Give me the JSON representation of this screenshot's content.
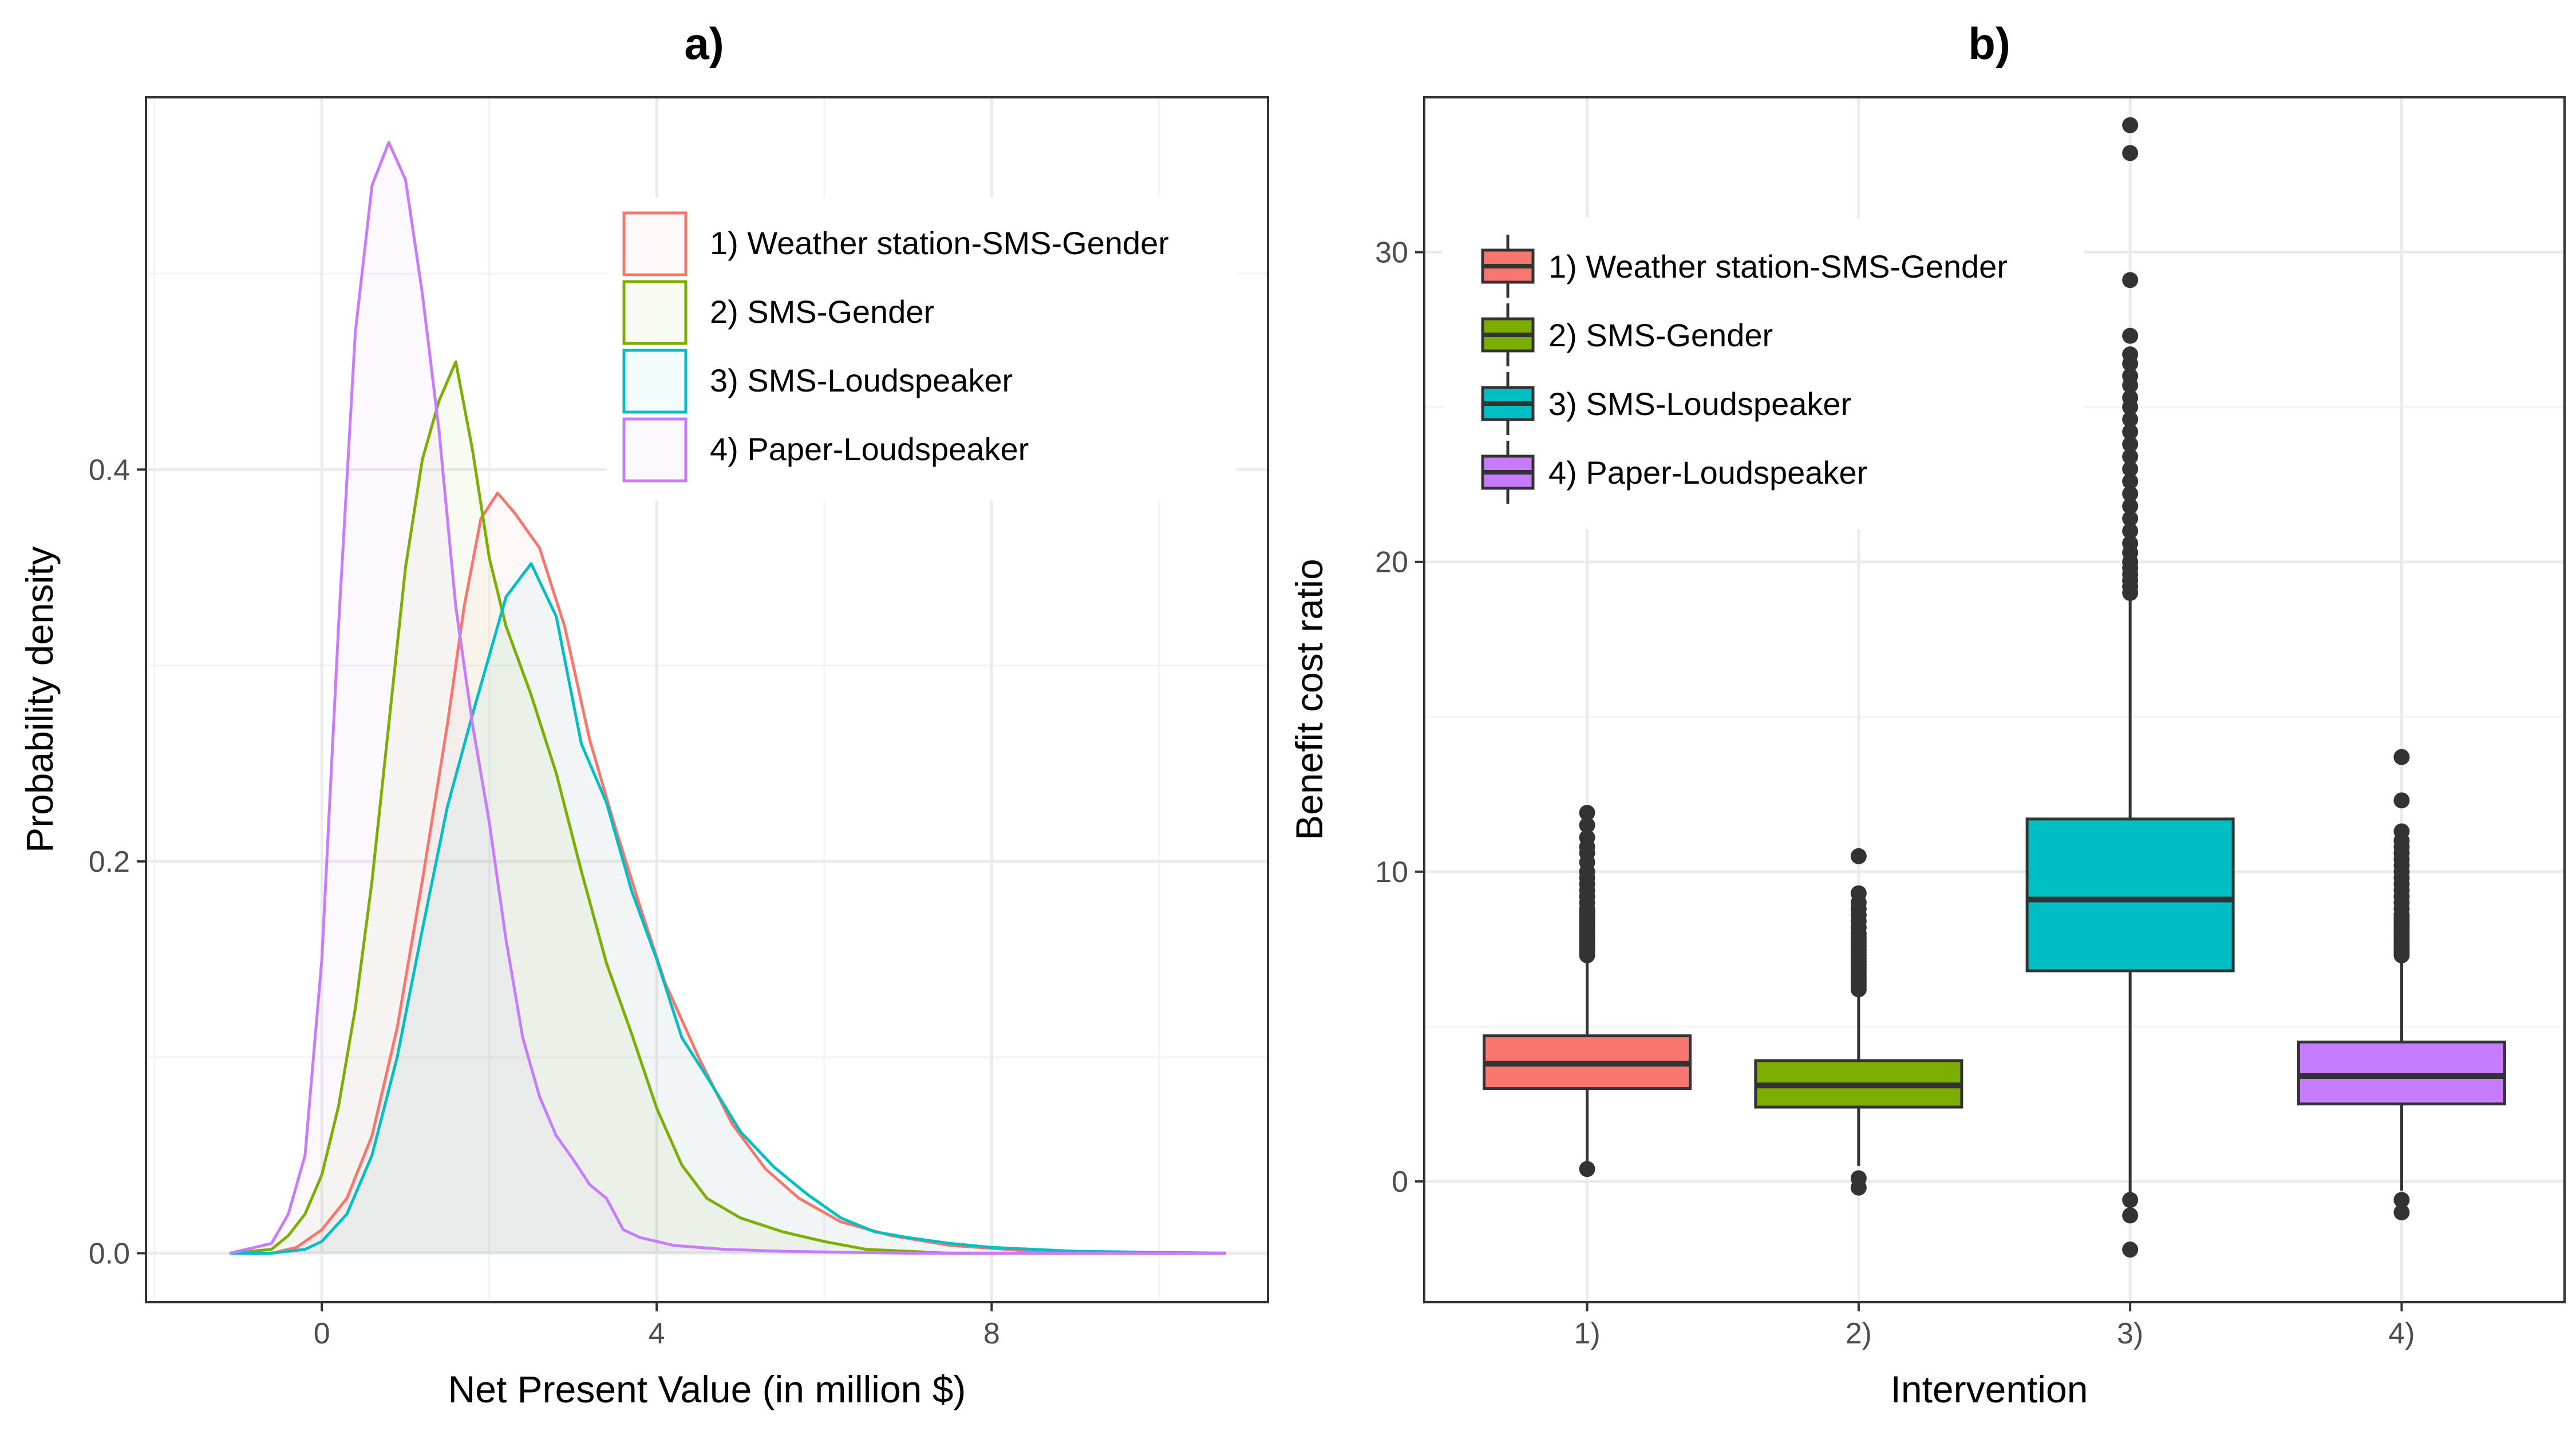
{
  "chart_data": [
    {
      "panel_label": "a)",
      "type": "area",
      "title": "a)",
      "xlabel": "Net Present Value (in million $)",
      "ylabel": "Probability density",
      "xlim": [
        -2.1,
        11.3
      ],
      "ylim": [
        -0.025,
        0.59
      ],
      "xticks": [
        0,
        4,
        8
      ],
      "xtick_labels": [
        "0",
        "4",
        "8"
      ],
      "yticks": [
        0.0,
        0.2,
        0.4
      ],
      "ytick_labels": [
        "0.0",
        "0.2",
        "0.4"
      ],
      "grid": true,
      "legend_position": "top-right",
      "series": [
        {
          "name": "1) Weather station-SMS-Gender",
          "color": "#F8766D",
          "x": [
            -1.1,
            -0.6,
            -0.3,
            0.0,
            0.3,
            0.6,
            0.9,
            1.2,
            1.5,
            1.7,
            1.9,
            2.1,
            2.3,
            2.6,
            2.9,
            3.2,
            3.5,
            3.8,
            4.1,
            4.5,
            4.9,
            5.3,
            5.7,
            6.2,
            6.8,
            7.5,
            8.5,
            9.5,
            10.8
          ],
          "y": [
            0.0,
            0.0,
            0.003,
            0.012,
            0.028,
            0.06,
            0.115,
            0.19,
            0.27,
            0.33,
            0.375,
            0.388,
            0.378,
            0.36,
            0.32,
            0.262,
            0.218,
            0.177,
            0.138,
            0.1,
            0.066,
            0.043,
            0.028,
            0.016,
            0.009,
            0.004,
            0.001,
            0.0,
            0.0
          ]
        },
        {
          "name": "2) SMS-Gender",
          "color": "#7CAE00",
          "x": [
            -1.1,
            -0.6,
            -0.4,
            -0.2,
            0.0,
            0.2,
            0.4,
            0.6,
            0.8,
            1.0,
            1.2,
            1.4,
            1.6,
            1.8,
            2.0,
            2.2,
            2.5,
            2.8,
            3.1,
            3.4,
            3.7,
            4.0,
            4.3,
            4.6,
            5.0,
            5.5,
            6.0,
            6.5,
            7.5,
            10.8
          ],
          "y": [
            0.0,
            0.002,
            0.009,
            0.02,
            0.04,
            0.075,
            0.125,
            0.19,
            0.27,
            0.35,
            0.405,
            0.435,
            0.455,
            0.41,
            0.355,
            0.32,
            0.285,
            0.245,
            0.195,
            0.148,
            0.112,
            0.074,
            0.045,
            0.028,
            0.018,
            0.011,
            0.006,
            0.002,
            0.0,
            0.0
          ]
        },
        {
          "name": "3) SMS-Loudspeaker",
          "color": "#00BFC4",
          "x": [
            -1.1,
            -0.6,
            -0.2,
            0.0,
            0.3,
            0.6,
            0.9,
            1.2,
            1.5,
            1.8,
            2.0,
            2.2,
            2.5,
            2.8,
            3.1,
            3.4,
            3.7,
            4.0,
            4.3,
            4.6,
            5.0,
            5.4,
            5.8,
            6.2,
            6.6,
            7.0,
            7.5,
            8.0,
            9.0,
            10.8
          ],
          "y": [
            0.0,
            0.0,
            0.002,
            0.006,
            0.02,
            0.05,
            0.1,
            0.165,
            0.228,
            0.275,
            0.305,
            0.335,
            0.352,
            0.325,
            0.26,
            0.23,
            0.185,
            0.15,
            0.11,
            0.09,
            0.062,
            0.044,
            0.03,
            0.018,
            0.011,
            0.008,
            0.005,
            0.003,
            0.001,
            0.0
          ]
        },
        {
          "name": "4) Paper-Loudspeaker",
          "color": "#C77CFF",
          "x": [
            -1.1,
            -0.6,
            -0.4,
            -0.2,
            0.0,
            0.2,
            0.4,
            0.6,
            0.8,
            1.0,
            1.2,
            1.4,
            1.6,
            1.8,
            2.0,
            2.2,
            2.4,
            2.6,
            2.8,
            3.0,
            3.2,
            3.4,
            3.6,
            3.8,
            4.2,
            4.8,
            5.5,
            7.0,
            10.8
          ],
          "y": [
            0.0,
            0.005,
            0.02,
            0.05,
            0.15,
            0.32,
            0.47,
            0.545,
            0.567,
            0.548,
            0.49,
            0.42,
            0.33,
            0.27,
            0.22,
            0.16,
            0.11,
            0.08,
            0.06,
            0.048,
            0.035,
            0.028,
            0.012,
            0.008,
            0.004,
            0.002,
            0.001,
            0.0,
            0.0
          ]
        }
      ]
    },
    {
      "panel_label": "b)",
      "type": "box",
      "title": "b)",
      "xlabel": "Intervention",
      "ylabel": "Benefit cost ratio",
      "categories": [
        "1)",
        "2)",
        "3)",
        "4)"
      ],
      "ylim": [
        -3.9,
        35.0
      ],
      "yticks": [
        0,
        10,
        20,
        30
      ],
      "ytick_labels": [
        "0",
        "10",
        "20",
        "30"
      ],
      "grid": true,
      "legend_position": "top-left",
      "series": [
        {
          "name": "1) Weather station-SMS-Gender",
          "color": "#F8766D",
          "category": "1)",
          "whisker_low": 0.5,
          "q1": 3.0,
          "median": 3.8,
          "q3": 4.7,
          "whisker_high": 7.2,
          "outliers": [
            7.3,
            7.4,
            7.5,
            7.6,
            7.7,
            7.8,
            7.9,
            8.0,
            8.1,
            8.2,
            8.3,
            8.4,
            8.5,
            8.6,
            8.7,
            8.8,
            9.0,
            9.2,
            9.4,
            9.6,
            9.8,
            10.0,
            10.3,
            10.6,
            10.8,
            11.1,
            11.5,
            11.9,
            0.4
          ]
        },
        {
          "name": "2) SMS-Gender",
          "color": "#7CAE00",
          "category": "2)",
          "whisker_low": 0.5,
          "q1": 2.4,
          "median": 3.1,
          "q3": 3.9,
          "whisker_high": 6.1,
          "outliers": [
            6.2,
            6.3,
            6.4,
            6.5,
            6.6,
            6.7,
            6.8,
            6.9,
            7.0,
            7.1,
            7.2,
            7.3,
            7.4,
            7.5,
            7.6,
            7.7,
            7.8,
            7.9,
            8.0,
            8.2,
            8.4,
            8.6,
            8.8,
            9.0,
            9.3,
            10.5,
            0.1,
            -0.2
          ]
        },
        {
          "name": "3) SMS-Loudspeaker",
          "color": "#00BFC4",
          "category": "3)",
          "whisker_low": -0.5,
          "q1": 6.8,
          "median": 9.1,
          "q3": 11.7,
          "whisker_high": 18.9,
          "outliers": [
            19.0,
            19.2,
            19.4,
            19.6,
            19.8,
            20.0,
            20.3,
            20.6,
            21.0,
            21.4,
            21.8,
            22.2,
            22.6,
            23.0,
            23.4,
            23.8,
            24.2,
            24.6,
            25.0,
            25.3,
            25.7,
            26.0,
            26.4,
            26.7,
            27.3,
            29.1,
            33.2,
            34.1,
            -0.6,
            -1.1,
            -2.2
          ]
        },
        {
          "name": "4) Paper-Loudspeaker",
          "color": "#C77CFF",
          "category": "4)",
          "whisker_low": -0.3,
          "q1": 2.5,
          "median": 3.4,
          "q3": 4.5,
          "whisker_high": 7.2,
          "outliers": [
            7.3,
            7.4,
            7.5,
            7.6,
            7.7,
            7.8,
            7.9,
            8.0,
            8.1,
            8.2,
            8.3,
            8.4,
            8.5,
            8.6,
            8.8,
            9.0,
            9.2,
            9.4,
            9.6,
            9.8,
            10.0,
            10.2,
            10.4,
            10.6,
            10.8,
            11.0,
            11.3,
            12.3,
            13.7,
            -0.6,
            -1.0
          ]
        }
      ]
    }
  ]
}
